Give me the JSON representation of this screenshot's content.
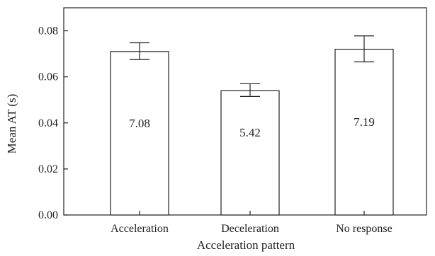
{
  "chart_data": {
    "type": "bar",
    "title": "",
    "xlabel": "Acceleration pattern",
    "ylabel": "Mean AT (s)",
    "categories": [
      "Acceleration",
      "Deceleration",
      "No response"
    ],
    "values": [
      0.071,
      0.054,
      0.072
    ],
    "error_low": [
      0.0675,
      0.0515,
      0.0665
    ],
    "error_high": [
      0.0748,
      0.057,
      0.0778
    ],
    "data_labels": [
      "7.08",
      "5.42",
      "7.19"
    ],
    "data_label_values": [
      0.04,
      0.036,
      0.0405
    ],
    "ylim": [
      0,
      0.09
    ],
    "yticks": [
      0.0,
      0.02,
      0.04,
      0.06,
      0.08
    ],
    "ytick_labels": [
      "0.00",
      "0.02",
      "0.04",
      "0.06",
      "0.08"
    ],
    "grid": false,
    "bar_fill": "#ffffff",
    "bar_stroke": "#222222"
  }
}
